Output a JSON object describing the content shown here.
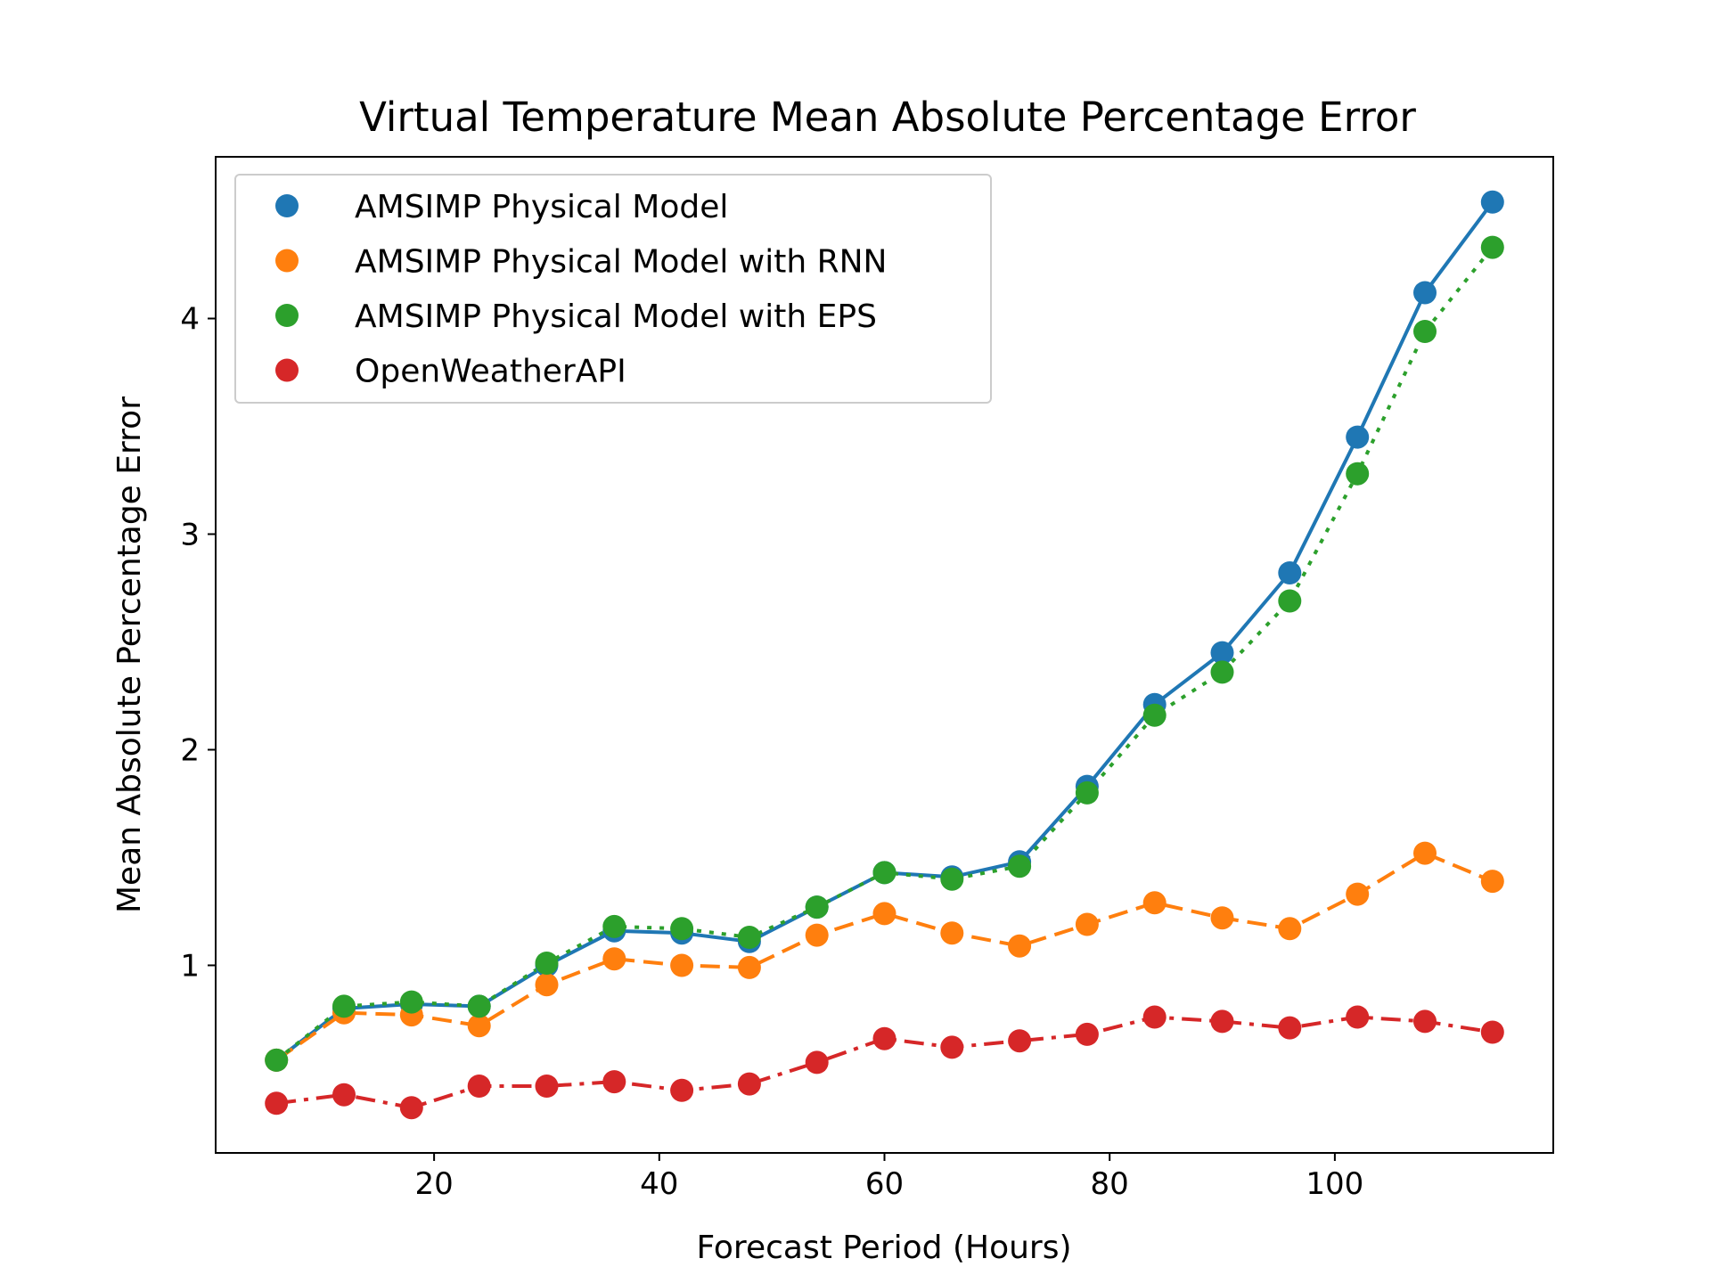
{
  "chart_data": {
    "type": "line",
    "title": "Virtual Temperature Mean Absolute Percentage Error",
    "xlabel": "Forecast Period (Hours)",
    "ylabel": "Mean Absolute Percentage Error",
    "xlim": [
      0.6,
      119.4
    ],
    "ylim": [
      0.13,
      4.75
    ],
    "xticks": [
      20,
      40,
      60,
      80,
      100
    ],
    "yticks": [
      1,
      2,
      3,
      4
    ],
    "grid": false,
    "legend_position": "upper-left",
    "x": [
      6,
      12,
      18,
      24,
      30,
      36,
      42,
      48,
      54,
      60,
      66,
      72,
      78,
      84,
      90,
      96,
      102,
      108,
      114
    ],
    "series": [
      {
        "name": "AMSIMP Physical Model",
        "color": "#1f77b4",
        "line_style": "solid",
        "values": [
          0.56,
          0.8,
          0.82,
          0.81,
          1.0,
          1.16,
          1.15,
          1.11,
          1.27,
          1.43,
          1.41,
          1.48,
          1.83,
          2.21,
          2.45,
          2.82,
          3.45,
          4.12,
          4.54
        ]
      },
      {
        "name": "AMSIMP Physical Model with RNN",
        "color": "#ff7f0e",
        "line_style": "dashed",
        "values": [
          0.56,
          0.78,
          0.77,
          0.72,
          0.91,
          1.03,
          1.0,
          0.99,
          1.14,
          1.24,
          1.15,
          1.09,
          1.19,
          1.29,
          1.22,
          1.17,
          1.33,
          1.52,
          1.39
        ]
      },
      {
        "name": "AMSIMP Physical Model with EPS",
        "color": "#2ca02c",
        "line_style": "dotted",
        "values": [
          0.56,
          0.81,
          0.83,
          0.81,
          1.01,
          1.18,
          1.17,
          1.13,
          1.27,
          1.43,
          1.4,
          1.46,
          1.8,
          2.16,
          2.36,
          2.69,
          3.28,
          3.94,
          4.33
        ]
      },
      {
        "name": "OpenWeatherAPI",
        "color": "#d62728",
        "line_style": "dashdot",
        "values": [
          0.36,
          0.4,
          0.34,
          0.44,
          0.44,
          0.46,
          0.42,
          0.45,
          0.55,
          0.66,
          0.62,
          0.65,
          0.68,
          0.76,
          0.74,
          0.71,
          0.76,
          0.74,
          0.69
        ]
      }
    ]
  }
}
